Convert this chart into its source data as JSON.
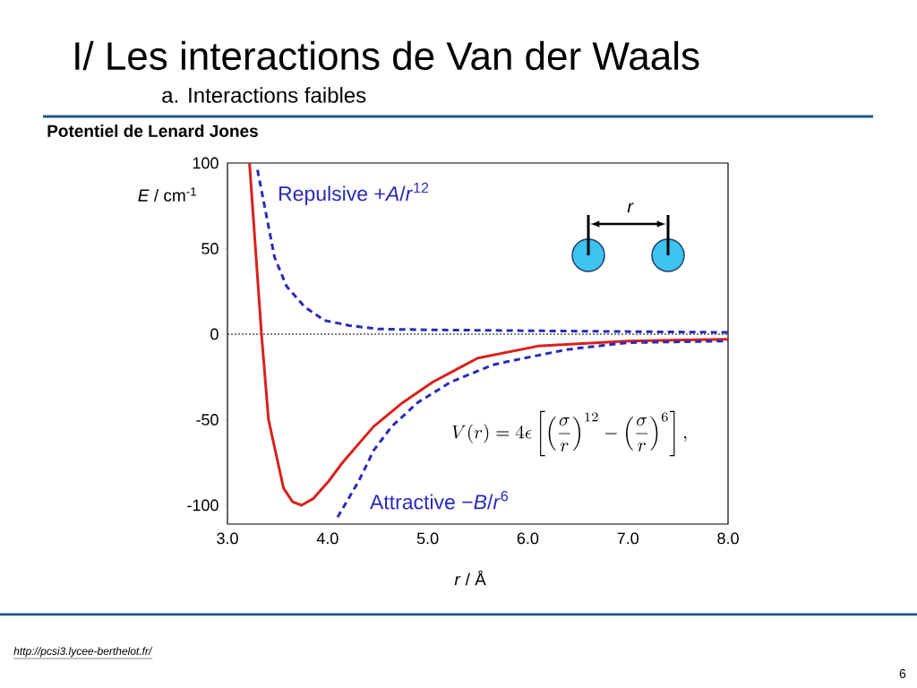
{
  "chart_data": {
    "type": "line",
    "title": "I/ Les interactions de Van der Waals",
    "subtitle": "a.  Interactions faibles",
    "xlabel": "*r* / Å",
    "ylabel": "*E* / cm$^{-1}$",
    "xlim": [
      3,
      8
    ],
    "ylim": [
      -111,
      100
    ],
    "xticks": [
      {
        "value": 3,
        "label": "3.0"
      },
      {
        "value": 4,
        "label": "4.0"
      },
      {
        "value": 5,
        "label": "5.0"
      },
      {
        "value": 6,
        "label": "6.0"
      },
      {
        "value": 7,
        "label": "7.0"
      },
      {
        "value": 8,
        "label": "8.0"
      }
    ],
    "yticks": [
      -100,
      -50,
      0,
      50,
      100
    ],
    "grid": false,
    "marker": "none",
    "series": [
      {
        "color": "#d9211c",
        "line_style": "solid",
        "x": [
          3.22,
          3.34,
          3.41,
          3.56,
          3.65,
          3.74,
          3.86,
          4.01,
          4.15,
          4.46,
          4.75,
          5.05,
          5.5,
          6.1,
          6.99,
          8.0
        ],
        "values": [
          100,
          0,
          -50,
          -90,
          -98,
          -100,
          -96,
          -86,
          -75,
          -54,
          -40,
          -28,
          -14,
          -7,
          -4,
          -3
        ]
      },
      {
        "name": "Repulsive    +*A*/*r*$^{12}$",
        "color": "#2a2ab8",
        "line_style": "dashed",
        "x": [
          3.3,
          3.41,
          3.47,
          3.59,
          3.77,
          3.97,
          4.22,
          4.51,
          5.0,
          6.0,
          8.0
        ],
        "values": [
          96,
          63,
          45,
          28,
          16,
          8,
          5,
          3,
          2.5,
          2,
          1
        ]
      },
      {
        "name": "Attractive    −*B*/*r*$^{6}$",
        "color": "#2a2ab8",
        "line_style": "dashed",
        "x": [
          4.1,
          4.31,
          4.46,
          4.64,
          4.9,
          5.23,
          5.65,
          5.8,
          6.39,
          6.99,
          8.0
        ],
        "values": [
          -107,
          -86,
          -68,
          -54,
          -40,
          -28,
          -18,
          -16,
          -9,
          -5,
          -4
        ]
      }
    ],
    "ref_lines": [
      {
        "axis": "y",
        "value": 0,
        "color": "#000000",
        "line_style": "dotted"
      }
    ],
    "annotations": [
      "**Potentiel de Lenard Jones**",
      "V(r) = 4\\epsilon \\left[ \\left(\\frac{\\sigma}{r}\\right)^{12} - \\left(\\frac{\\sigma}{r}\\right)^{6} \\right],",
      "*r*",
      "*http://pcsi3.lycee-berthelot.fr/*",
      "6"
    ]
  }
}
